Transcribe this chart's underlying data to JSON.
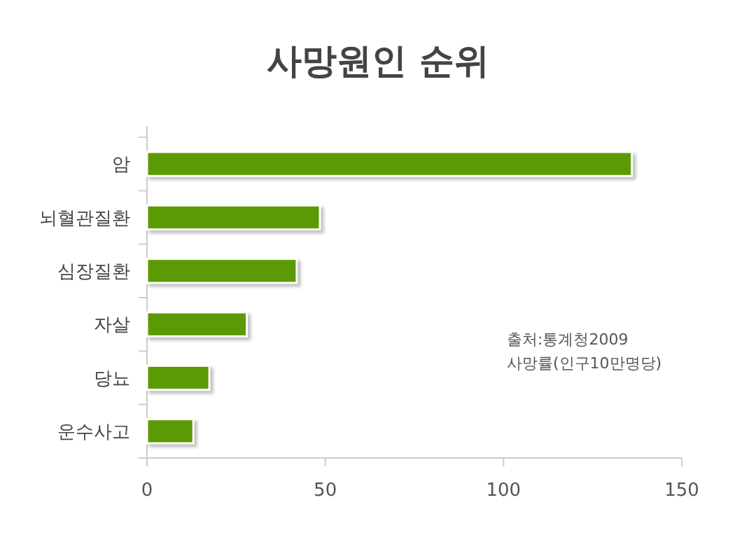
{
  "chart_data": {
    "type": "bar",
    "orientation": "horizontal",
    "title": "사망원인 순위",
    "categories": [
      "암",
      "뇌혈관질환",
      "심장질환",
      "자살",
      "당뇨",
      "운수사고"
    ],
    "values": [
      136,
      48.5,
      42,
      28,
      17.5,
      13
    ],
    "color": "#5c9a05",
    "xlim": [
      0,
      150
    ],
    "xticks": [
      0,
      50,
      100,
      150
    ],
    "grid": false,
    "annotations": [
      "출처:통계청2009",
      "사망률(인구10만명당)"
    ]
  }
}
